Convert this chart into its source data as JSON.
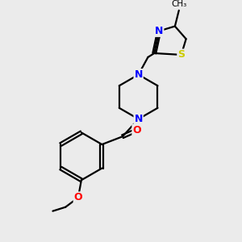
{
  "bg_color": "#ebebeb",
  "atom_colors": {
    "N": "#0000ff",
    "O": "#ff0000",
    "S": "#cccc00"
  },
  "bond_color": "#000000",
  "bond_width": 1.6,
  "figsize": [
    3.0,
    3.0
  ],
  "dpi": 100,
  "scale": 1.0
}
